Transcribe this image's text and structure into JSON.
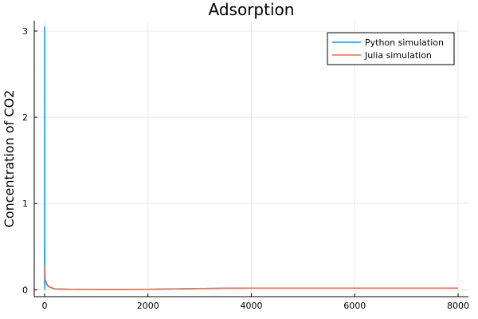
{
  "chart_data": {
    "type": "line",
    "title": "Adsorption",
    "xlabel": "",
    "ylabel": "Concentration of CO2",
    "xlim": [
      -200,
      8200
    ],
    "ylim": [
      -0.08,
      3.12
    ],
    "xticks": [
      0,
      2000,
      4000,
      6000,
      8000
    ],
    "yticks": [
      0,
      1,
      2,
      3
    ],
    "grid": true,
    "legend": "top-right",
    "series": [
      {
        "name": "Python simulation",
        "color": "#009AFA",
        "x": [
          0,
          1,
          2,
          5,
          10,
          50,
          100,
          200,
          500,
          1000,
          1500,
          2000,
          2500,
          3000,
          3500,
          4000,
          5000,
          6000,
          7000,
          8000
        ],
        "y": [
          0.0,
          3.05,
          0.6,
          0.25,
          0.12,
          0.06,
          0.03,
          0.01,
          0.005,
          0.004,
          0.004,
          0.005,
          0.01,
          0.015,
          0.018,
          0.02,
          0.02,
          0.02,
          0.02,
          0.02
        ]
      },
      {
        "name": "Julia simulation",
        "color": "#E26F46",
        "x": [
          0,
          2,
          5,
          10,
          50,
          100,
          200,
          500,
          1000,
          1500,
          2000,
          2500,
          3000,
          3500,
          4000,
          5000,
          6000,
          7000,
          8000
        ],
        "y": [
          0.28,
          0.2,
          0.15,
          0.1,
          0.05,
          0.03,
          0.01,
          0.005,
          0.004,
          0.004,
          0.005,
          0.01,
          0.015,
          0.018,
          0.02,
          0.02,
          0.02,
          0.02,
          0.02
        ]
      }
    ]
  }
}
